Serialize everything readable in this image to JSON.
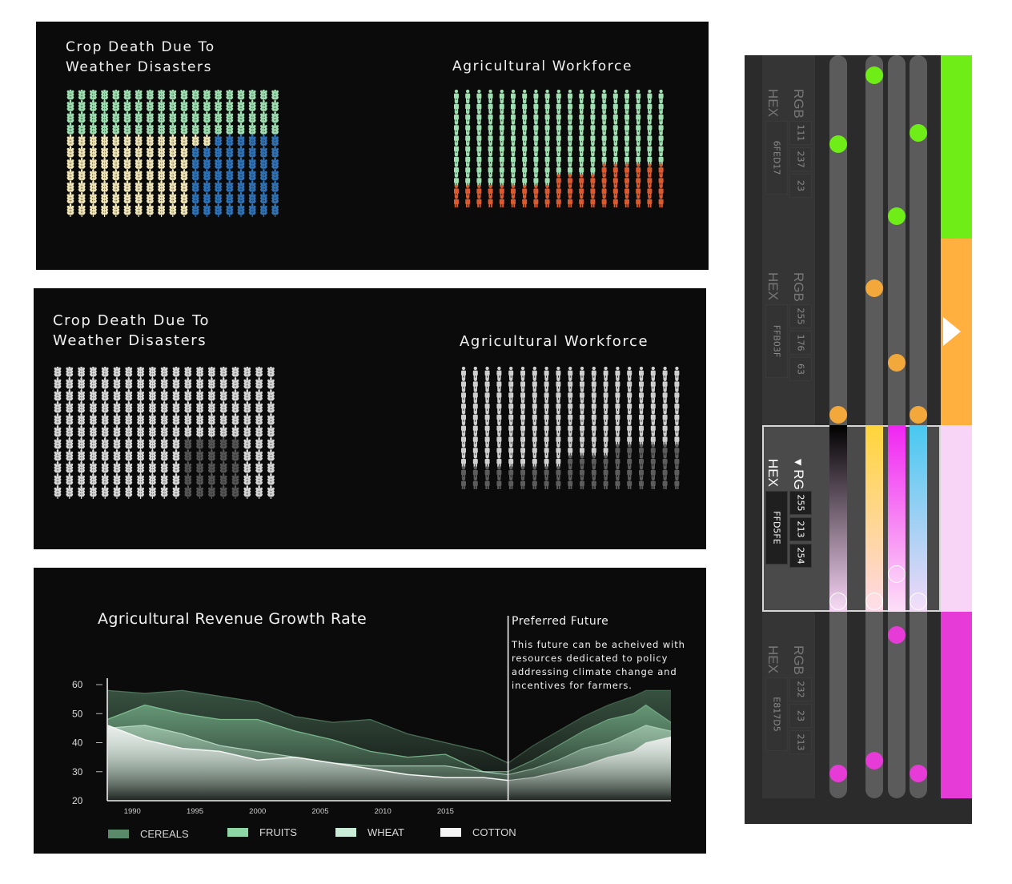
{
  "panel_colored": {
    "crop_title": "Crop Death Due To\nWeather Disasters",
    "workforce_title": "Agricultural Workforce",
    "crop_grid": {
      "cols": 19,
      "rows": 11
    },
    "workforce_grid": {
      "cols": 19,
      "rows": 11
    }
  },
  "panel_grayscale": {
    "crop_title": "Crop Death Due To\nWeather Disasters",
    "workforce_title": "Agricultural Workforce"
  },
  "revenue_chart": {
    "title": "Agricultural Revenue Growth Rate",
    "future_label": "Preferred Future",
    "future_text": "This future can be acheived with resources dedicated to policy addressing climate change and incentives for farmers."
  },
  "chart_data": {
    "type": "area",
    "title": "Agricultural Revenue Growth Rate",
    "xlabel": "",
    "ylabel": "",
    "x_ticks": [
      "1990",
      "1995",
      "2000",
      "2005",
      "2010",
      "2015"
    ],
    "y_ticks": [
      20,
      30,
      40,
      50,
      60
    ],
    "ylim": [
      20,
      60
    ],
    "xlim": [
      1988,
      2033
    ],
    "x": [
      1988,
      1991,
      1994,
      1997,
      2000,
      2003,
      2006,
      2009,
      2012,
      2015,
      2018,
      2020
    ],
    "future_x": [
      2020,
      2022,
      2024,
      2026,
      2028,
      2030,
      2031,
      2033
    ],
    "series": [
      {
        "name": "CEREALS",
        "color": "#5b8a6b",
        "values": [
          58,
          57,
          58,
          56,
          54,
          49,
          47,
          48,
          43,
          40,
          37,
          33
        ],
        "future": [
          33,
          39,
          44,
          49,
          53,
          56,
          58,
          58
        ]
      },
      {
        "name": "FRUITS",
        "color": "#8fd6a6",
        "values": [
          48,
          53,
          50,
          48,
          48,
          44,
          41,
          37,
          35,
          36,
          30,
          30
        ],
        "future": [
          30,
          34,
          39,
          44,
          48,
          50,
          53,
          47
        ]
      },
      {
        "name": "WHEAT",
        "color": "#c8ecd5",
        "values": [
          45,
          46,
          43,
          39,
          37,
          35,
          33,
          32,
          32,
          32,
          30,
          29
        ],
        "future": [
          29,
          31,
          34,
          38,
          40,
          44,
          46,
          44
        ]
      },
      {
        "name": "COTTON",
        "color": "#f4f4f4",
        "values": [
          46,
          41,
          38,
          37,
          34,
          35,
          33,
          31,
          29,
          28,
          28,
          27
        ],
        "future": [
          27,
          28,
          30,
          32,
          35,
          37,
          40,
          42
        ]
      }
    ],
    "divider_x": 2020,
    "legend_position": "bottom"
  },
  "color_picker": {
    "band_label_rgb": "RGB",
    "band_label_hex": "HEX",
    "bands": [
      {
        "hex": "6FED17",
        "rgb": [
          "111",
          "237",
          "23"
        ],
        "color": "#6fed17",
        "selected": false
      },
      {
        "hex": "FFB03F",
        "rgb": [
          "255",
          "176",
          "63"
        ],
        "color": "#ffb03f",
        "selected": false
      },
      {
        "hex": "FFD5FE",
        "rgb": [
          "255",
          "213",
          "254"
        ],
        "color": "#f8d4f6",
        "selected": true
      },
      {
        "hex": "E817D5",
        "rgb": [
          "232",
          "23",
          "213"
        ],
        "color": "#e63bd7",
        "selected": false
      }
    ],
    "knob_colors": {
      "green": "#6fed17",
      "orange": "#f3a83c",
      "white": "#ffffff",
      "magenta": "#e63bd7"
    }
  }
}
